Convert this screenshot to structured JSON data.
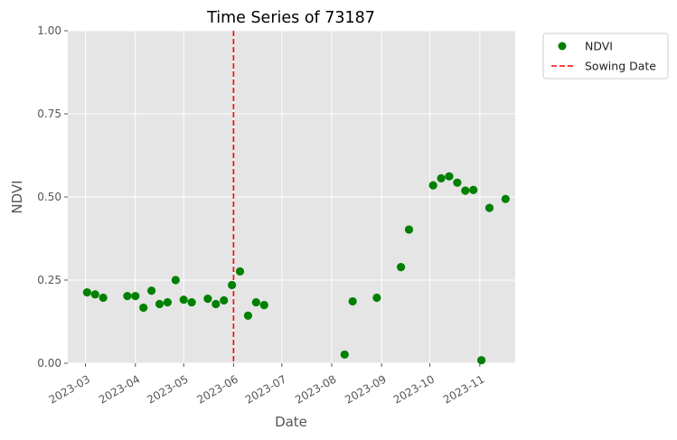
{
  "chart_data": {
    "type": "scatter",
    "title": "Time Series of 73187",
    "xlabel": "Date",
    "ylabel": "NDVI",
    "xlim": [
      "2023-02-18",
      "2023-11-23"
    ],
    "ylim": [
      0,
      1
    ],
    "y_ticks": [
      "0.00",
      "0.25",
      "0.50",
      "0.75",
      "1.00"
    ],
    "y_tick_values": [
      0,
      0.25,
      0.5,
      0.75,
      1.0
    ],
    "x_ticks": [
      "2023-03",
      "2023-04",
      "2023-05",
      "2023-06",
      "2023-07",
      "2023-08",
      "2023-09",
      "2023-10",
      "2023-11"
    ],
    "x_tick_dates": [
      "2023-03-01",
      "2023-04-01",
      "2023-05-01",
      "2023-06-01",
      "2023-07-01",
      "2023-08-01",
      "2023-09-01",
      "2023-10-01",
      "2023-11-01"
    ],
    "grid": true,
    "legend_position": "outside-top-right",
    "sowing_date": "2023-06-01",
    "series": [
      {
        "name": "NDVI",
        "marker": "circle",
        "color": "#008000",
        "points": [
          {
            "date": "2023-03-02",
            "value": 0.213
          },
          {
            "date": "2023-03-07",
            "value": 0.207
          },
          {
            "date": "2023-03-12",
            "value": 0.197
          },
          {
            "date": "2023-03-27",
            "value": 0.202
          },
          {
            "date": "2023-04-01",
            "value": 0.202
          },
          {
            "date": "2023-04-06",
            "value": 0.167
          },
          {
            "date": "2023-04-11",
            "value": 0.218
          },
          {
            "date": "2023-04-16",
            "value": 0.178
          },
          {
            "date": "2023-04-21",
            "value": 0.183
          },
          {
            "date": "2023-04-26",
            "value": 0.25
          },
          {
            "date": "2023-05-01",
            "value": 0.191
          },
          {
            "date": "2023-05-06",
            "value": 0.183
          },
          {
            "date": "2023-05-16",
            "value": 0.194
          },
          {
            "date": "2023-05-21",
            "value": 0.178
          },
          {
            "date": "2023-05-26",
            "value": 0.189
          },
          {
            "date": "2023-05-31",
            "value": 0.235
          },
          {
            "date": "2023-06-05",
            "value": 0.276
          },
          {
            "date": "2023-06-10",
            "value": 0.143
          },
          {
            "date": "2023-06-15",
            "value": 0.183
          },
          {
            "date": "2023-06-20",
            "value": 0.175
          },
          {
            "date": "2023-08-09",
            "value": 0.026
          },
          {
            "date": "2023-08-14",
            "value": 0.186
          },
          {
            "date": "2023-08-29",
            "value": 0.197
          },
          {
            "date": "2023-09-13",
            "value": 0.289
          },
          {
            "date": "2023-09-18",
            "value": 0.402
          },
          {
            "date": "2023-10-03",
            "value": 0.535
          },
          {
            "date": "2023-10-08",
            "value": 0.556
          },
          {
            "date": "2023-10-13",
            "value": 0.562
          },
          {
            "date": "2023-10-18",
            "value": 0.543
          },
          {
            "date": "2023-10-23",
            "value": 0.519
          },
          {
            "date": "2023-10-28",
            "value": 0.521
          },
          {
            "date": "2023-11-02",
            "value": 0.009
          },
          {
            "date": "2023-11-07",
            "value": 0.467
          },
          {
            "date": "2023-11-17",
            "value": 0.494
          }
        ]
      }
    ],
    "reference_lines": [
      {
        "name": "Sowing Date",
        "date": "2023-06-01",
        "style": "dashed",
        "color": "#ff0000"
      }
    ],
    "legend": [
      {
        "label": "NDVI",
        "kind": "marker",
        "color": "#008000"
      },
      {
        "label": "Sowing Date",
        "kind": "dashed-line",
        "color": "#ff0000"
      }
    ],
    "colors": {
      "plot_background": "#e5e5e5",
      "grid": "#ffffff",
      "tick_text": "#555555"
    }
  }
}
